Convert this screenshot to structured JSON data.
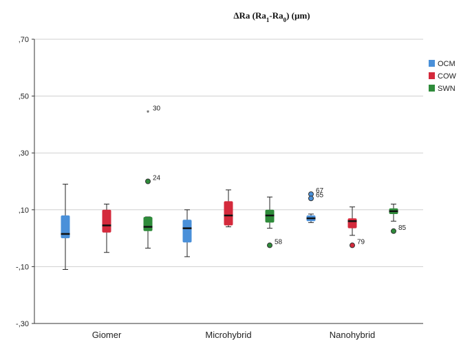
{
  "chart_data": {
    "type": "boxplot",
    "title": "ΔRa (Ra1-Ra0) (µm)",
    "title_parts": [
      "ΔRa (Ra",
      "1",
      "-Ra",
      "0",
      ") (µm)"
    ],
    "xlabel": "",
    "ylabel": "",
    "ylim": [
      -0.3,
      0.7
    ],
    "y_ticks": [
      -0.3,
      -0.1,
      0.1,
      0.3,
      0.5,
      0.7
    ],
    "y_tick_labels": [
      "-,30",
      "-,10",
      ",10",
      ",30",
      ",50",
      ",70"
    ],
    "grid": true,
    "legend_position": "right",
    "categories": [
      "Giomer",
      "Microhybrid",
      "Nanohybrid"
    ],
    "series": [
      {
        "name": "OCM",
        "color": "#4a90d9",
        "boxes": [
          {
            "category": "Giomer",
            "whisker_low": -0.11,
            "q1": 0.0,
            "median": 0.015,
            "q3": 0.08,
            "whisker_high": 0.19,
            "outliers": []
          },
          {
            "category": "Microhybrid",
            "whisker_low": -0.065,
            "q1": -0.015,
            "median": 0.035,
            "q3": 0.065,
            "whisker_high": 0.1,
            "outliers": []
          },
          {
            "category": "Nanohybrid",
            "whisker_low": 0.055,
            "q1": 0.06,
            "median": 0.07,
            "q3": 0.08,
            "whisker_high": 0.085,
            "outliers": [
              {
                "value": 0.155,
                "label": "67",
                "marker": "circle"
              },
              {
                "value": 0.14,
                "label": "65",
                "marker": "circle"
              }
            ]
          }
        ]
      },
      {
        "name": "COW",
        "color": "#d42a3c",
        "boxes": [
          {
            "category": "Giomer",
            "whisker_low": -0.05,
            "q1": 0.02,
            "median": 0.045,
            "q3": 0.1,
            "whisker_high": 0.12,
            "outliers": []
          },
          {
            "category": "Microhybrid",
            "whisker_low": 0.04,
            "q1": 0.045,
            "median": 0.08,
            "q3": 0.13,
            "whisker_high": 0.17,
            "outliers": []
          },
          {
            "category": "Nanohybrid",
            "whisker_low": 0.01,
            "q1": 0.035,
            "median": 0.06,
            "q3": 0.07,
            "whisker_high": 0.11,
            "outliers": [
              {
                "value": -0.025,
                "label": "79",
                "marker": "circle"
              }
            ]
          }
        ]
      },
      {
        "name": "SWN",
        "color": "#2e8b3a",
        "boxes": [
          {
            "category": "Giomer",
            "whisker_low": -0.035,
            "q1": 0.025,
            "median": 0.04,
            "q3": 0.075,
            "whisker_high": 0.075,
            "outliers": [
              {
                "value": 0.445,
                "label": "30",
                "marker": "star"
              },
              {
                "value": 0.2,
                "label": "24",
                "marker": "circle"
              }
            ]
          },
          {
            "category": "Microhybrid",
            "whisker_low": 0.035,
            "q1": 0.055,
            "median": 0.08,
            "q3": 0.1,
            "whisker_high": 0.145,
            "outliers": [
              {
                "value": -0.025,
                "label": "58",
                "marker": "circle"
              }
            ]
          },
          {
            "category": "Nanohybrid",
            "whisker_low": 0.06,
            "q1": 0.085,
            "median": 0.095,
            "q3": 0.105,
            "whisker_high": 0.12,
            "outliers": [
              {
                "value": 0.025,
                "label": "85",
                "marker": "circle"
              }
            ]
          }
        ]
      }
    ]
  }
}
